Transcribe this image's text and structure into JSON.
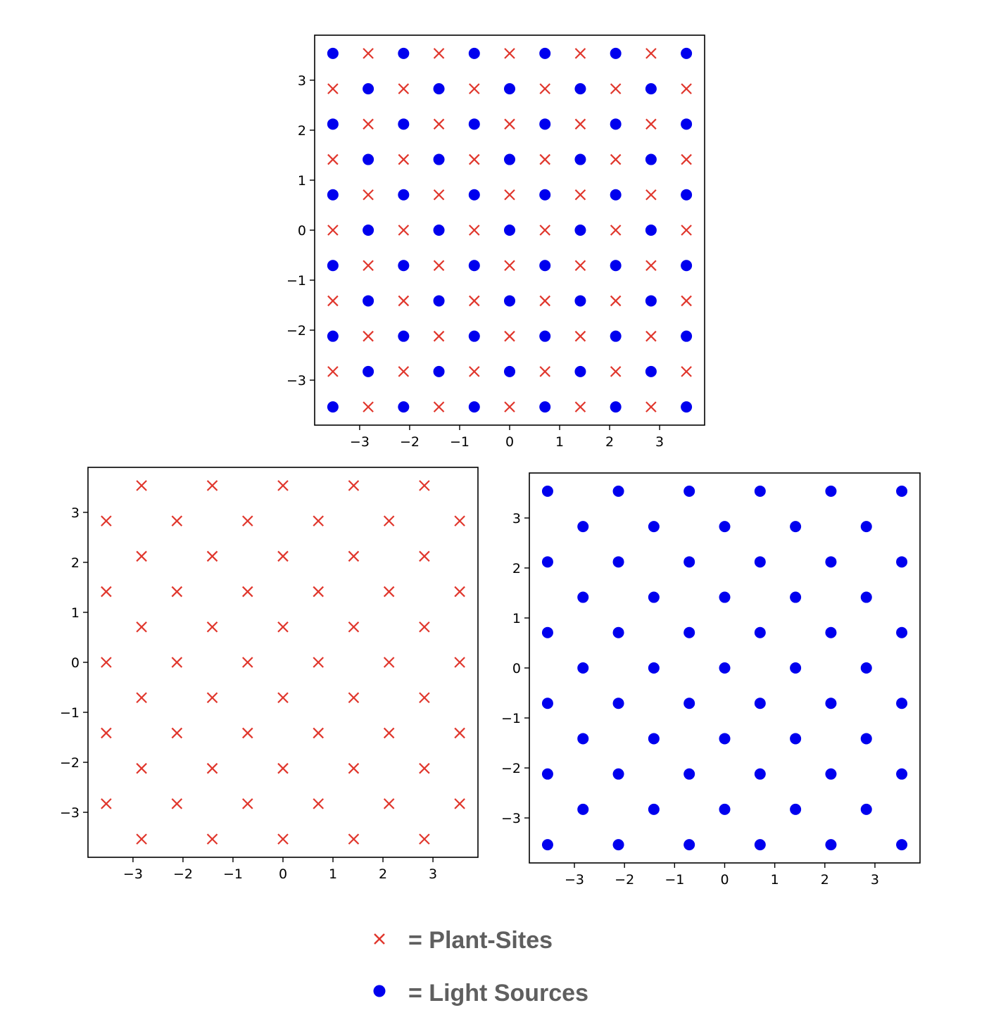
{
  "colors": {
    "plant": "#e0362c",
    "light": "#0000ee",
    "frame": "#000000",
    "legend_text": "#5f5f5f"
  },
  "legend": {
    "plant_label": "= Plant-Sites",
    "light_label": "= Light Sources",
    "plant_marker": "x-marker",
    "light_marker": "circle-marker"
  },
  "chart_data": [
    {
      "id": "combined",
      "type": "scatter",
      "title": "",
      "xlabel": "",
      "ylabel": "",
      "xlim": [
        -3.9,
        3.9
      ],
      "ylim": [
        -3.9,
        3.9
      ],
      "xticks": [
        -3,
        -2,
        -1,
        0,
        1,
        2,
        3
      ],
      "yticks": [
        -3,
        -2,
        -1,
        0,
        1,
        2,
        3
      ],
      "xtick_labels": [
        "−3",
        "−2",
        "−1",
        "0",
        "1",
        "2",
        "3"
      ],
      "ytick_labels": [
        "−3",
        "−2",
        "−1",
        "0",
        "1",
        "2",
        "3"
      ],
      "grid": false,
      "lattice": {
        "min": -3.5355,
        "step": 0.7071,
        "count": 11
      },
      "series": [
        {
          "marker": "x",
          "color": "#e0362c",
          "rule": "odd_index_sum"
        },
        {
          "marker": "circle",
          "color": "#0000ee",
          "rule": "even_index_sum"
        }
      ]
    },
    {
      "id": "plants",
      "type": "scatter",
      "title": "",
      "xlabel": "",
      "ylabel": "",
      "xlim": [
        -3.9,
        3.9
      ],
      "ylim": [
        -3.9,
        3.9
      ],
      "xticks": [
        -3,
        -2,
        -1,
        0,
        1,
        2,
        3
      ],
      "yticks": [
        -3,
        -2,
        -1,
        0,
        1,
        2,
        3
      ],
      "xtick_labels": [
        "−3",
        "−2",
        "−1",
        "0",
        "1",
        "2",
        "3"
      ],
      "ytick_labels": [
        "−3",
        "−2",
        "−1",
        "0",
        "1",
        "2",
        "3"
      ],
      "grid": false,
      "lattice": {
        "min": -3.5355,
        "step": 0.7071,
        "count": 11
      },
      "series": [
        {
          "marker": "x",
          "color": "#e0362c",
          "rule": "odd_index_sum"
        }
      ]
    },
    {
      "id": "lights",
      "type": "scatter",
      "title": "",
      "xlabel": "",
      "ylabel": "",
      "xlim": [
        -3.9,
        3.9
      ],
      "ylim": [
        -3.9,
        3.9
      ],
      "xticks": [
        -3,
        -2,
        -1,
        0,
        1,
        2,
        3
      ],
      "yticks": [
        -3,
        -2,
        -1,
        0,
        1,
        2,
        3
      ],
      "xtick_labels": [
        "−3",
        "−2",
        "−1",
        "0",
        "1",
        "2",
        "3"
      ],
      "ytick_labels": [
        "−3",
        "−2",
        "−1",
        "0",
        "1",
        "2",
        "3"
      ],
      "grid": false,
      "lattice": {
        "min": -3.5355,
        "step": 0.7071,
        "count": 11
      },
      "series": [
        {
          "marker": "circle",
          "color": "#0000ee",
          "rule": "even_index_sum"
        }
      ]
    }
  ]
}
